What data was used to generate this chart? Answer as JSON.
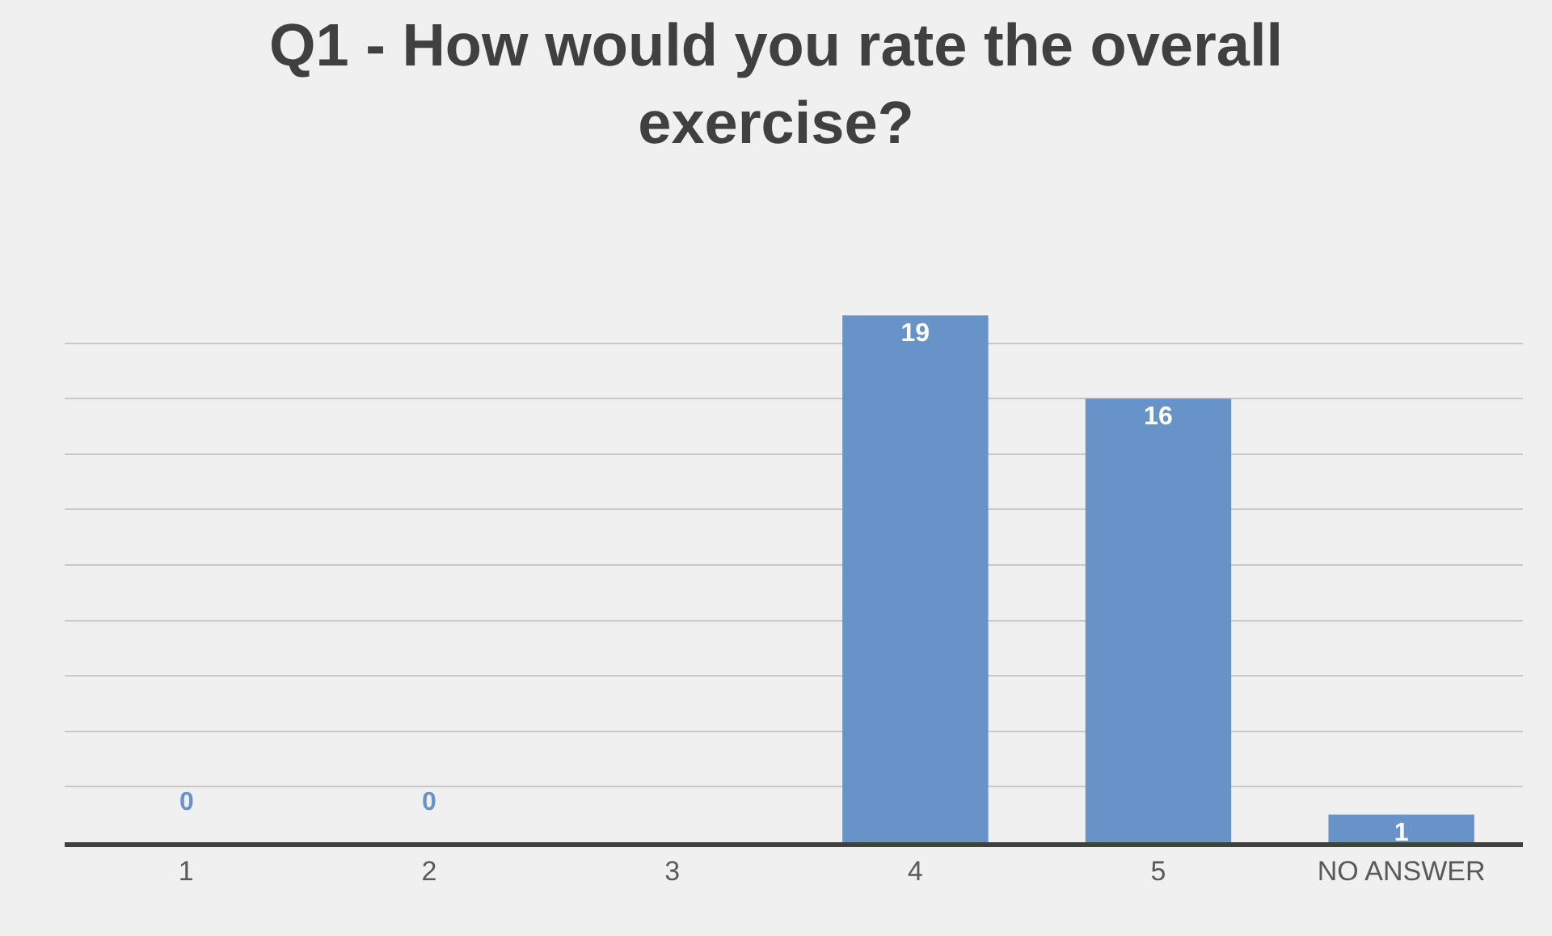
{
  "chart_data": {
    "type": "bar",
    "title": "Q1 - How would you rate the overall exercise?",
    "categories": [
      "1",
      "2",
      "3",
      "4",
      "5",
      "NO ANSWER"
    ],
    "values": [
      0,
      0,
      0,
      19,
      16,
      1
    ],
    "value_labels": [
      "0",
      "0",
      null,
      "19",
      "16",
      "1"
    ],
    "color": "#6793c8",
    "yticks": [
      {
        "value": 0,
        "label": null
      },
      {
        "value": 2,
        "label": null
      },
      {
        "value": 4,
        "label": null
      },
      {
        "value": 6,
        "label": null
      },
      {
        "value": 8,
        "label": null
      },
      {
        "value": 10,
        "label": null
      },
      {
        "value": 12,
        "label": null
      },
      {
        "value": 14,
        "label": null
      },
      {
        "value": 16,
        "label": null
      },
      {
        "value": 18,
        "label": null
      }
    ],
    "grid": "y",
    "tick_labels": "x"
  }
}
